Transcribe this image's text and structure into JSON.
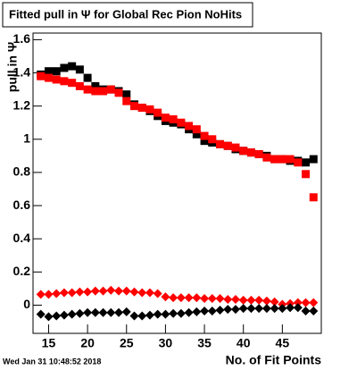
{
  "chart_data": {
    "type": "scatter",
    "title": "Fitted pull in Ψ  for Global Rec Pion NoHits",
    "y_label": "pull in Ψ",
    "x_label": "No. of Fit Points",
    "timestamp": "Wed Jan 31 10:48:52 2018",
    "x": [
      14,
      15,
      16,
      17,
      18,
      19,
      20,
      21,
      22,
      23,
      24,
      25,
      26,
      27,
      28,
      29,
      30,
      31,
      32,
      33,
      34,
      35,
      36,
      37,
      38,
      39,
      40,
      41,
      42,
      43,
      44,
      45,
      46,
      47,
      48,
      49
    ],
    "series": [
      {
        "color": "#000000",
        "marker": "square",
        "values": [
          1.39,
          1.41,
          1.41,
          1.43,
          1.44,
          1.42,
          1.37,
          1.32,
          1.3,
          1.3,
          1.29,
          1.27,
          1.21,
          1.19,
          1.17,
          1.14,
          1.11,
          1.1,
          1.09,
          1.06,
          1.03,
          0.99,
          0.98,
          0.97,
          0.96,
          0.94,
          0.93,
          0.92,
          0.91,
          0.9,
          0.88,
          0.88,
          0.87,
          0.87,
          0.86,
          0.88
        ]
      },
      {
        "color": "#ff0000",
        "marker": "square",
        "values": [
          1.38,
          1.37,
          1.36,
          1.35,
          1.34,
          1.32,
          1.3,
          1.29,
          1.29,
          1.3,
          1.28,
          1.23,
          1.2,
          1.19,
          1.18,
          1.16,
          1.13,
          1.12,
          1.1,
          1.08,
          1.06,
          1.02,
          1.0,
          0.97,
          0.96,
          0.95,
          0.93,
          0.92,
          0.91,
          0.89,
          0.88,
          0.88,
          0.88,
          0.86,
          0.79,
          0.65
        ]
      },
      {
        "color": "#ff0000",
        "marker": "diamond",
        "values": [
          0.065,
          0.065,
          0.07,
          0.075,
          0.075,
          0.08,
          0.08,
          0.085,
          0.085,
          0.09,
          0.085,
          0.085,
          0.08,
          0.075,
          0.075,
          0.07,
          0.05,
          0.045,
          0.045,
          0.045,
          0.045,
          0.04,
          0.04,
          0.04,
          0.035,
          0.035,
          0.03,
          0.03,
          0.03,
          0.025,
          0.02,
          0.005,
          0.01,
          0.015,
          0.015,
          0.015
        ]
      },
      {
        "color": "#000000",
        "marker": "diamond",
        "values": [
          -0.055,
          -0.07,
          -0.065,
          -0.06,
          -0.055,
          -0.05,
          -0.045,
          -0.045,
          -0.045,
          -0.045,
          -0.045,
          -0.04,
          -0.065,
          -0.065,
          -0.06,
          -0.055,
          -0.055,
          -0.05,
          -0.05,
          -0.045,
          -0.04,
          -0.035,
          -0.035,
          -0.03,
          -0.025,
          -0.025,
          -0.02,
          -0.02,
          -0.02,
          -0.02,
          -0.02,
          -0.02,
          -0.015,
          -0.015,
          -0.035,
          -0.035
        ]
      }
    ],
    "xlim": [
      13,
      50
    ],
    "xticks": [
      15,
      20,
      25,
      30,
      35,
      40,
      45
    ],
    "ylim": [
      -0.17,
      1.64
    ],
    "yticks": [
      0,
      0.2,
      0.4,
      0.6,
      0.8,
      1,
      1.2,
      1.4,
      1.6
    ]
  }
}
